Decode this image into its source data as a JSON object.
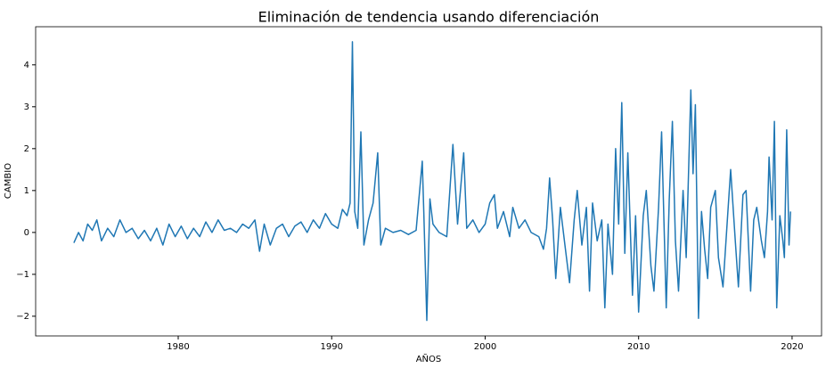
{
  "chart_data": {
    "type": "line",
    "title": "Eliminación de tendencia usando diferenciación",
    "xlabel": "AÑOS",
    "ylabel": "CAMBIO",
    "x": [
      1973.2,
      1973.5,
      1973.8,
      1974.1,
      1974.4,
      1974.7,
      1975.0,
      1975.4,
      1975.8,
      1976.2,
      1976.6,
      1977.0,
      1977.4,
      1977.8,
      1978.2,
      1978.6,
      1979.0,
      1979.4,
      1979.8,
      1980.2,
      1980.6,
      1981.0,
      1981.4,
      1981.8,
      1982.2,
      1982.6,
      1983.0,
      1983.4,
      1983.8,
      1984.2,
      1984.6,
      1985.0,
      1985.3,
      1985.6,
      1986.0,
      1986.4,
      1986.8,
      1987.2,
      1987.6,
      1988.0,
      1988.4,
      1988.8,
      1989.2,
      1989.6,
      1990.0,
      1990.4,
      1990.7,
      1991.0,
      1991.2,
      1991.35,
      1991.5,
      1991.7,
      1991.9,
      1992.1,
      1992.4,
      1992.7,
      1993.0,
      1993.2,
      1993.5,
      1994.0,
      1994.5,
      1995.0,
      1995.5,
      1995.9,
      1996.0,
      1996.2,
      1996.4,
      1996.6,
      1997.0,
      1997.5,
      1997.9,
      1998.2,
      1998.6,
      1998.8,
      1999.2,
      1999.6,
      2000.0,
      2000.3,
      2000.6,
      2000.8,
      2001.2,
      2001.6,
      2001.8,
      2002.2,
      2002.6,
      2003.0,
      2003.5,
      2003.8,
      2004.0,
      2004.2,
      2004.4,
      2004.6,
      2004.9,
      2005.2,
      2005.5,
      2005.8,
      2006.0,
      2006.3,
      2006.6,
      2006.8,
      2007.0,
      2007.3,
      2007.6,
      2007.8,
      2008.0,
      2008.3,
      2008.5,
      2008.7,
      2008.9,
      2009.1,
      2009.3,
      2009.6,
      2009.8,
      2010.0,
      2010.3,
      2010.5,
      2010.8,
      2011.0,
      2011.3,
      2011.5,
      2011.8,
      2012.0,
      2012.2,
      2012.4,
      2012.6,
      2012.9,
      2013.1,
      2013.4,
      2013.55,
      2013.7,
      2013.9,
      2014.1,
      2014.3,
      2014.5,
      2014.7,
      2015.0,
      2015.2,
      2015.5,
      2015.8,
      2016.0,
      2016.3,
      2016.5,
      2016.8,
      2017.0,
      2017.3,
      2017.5,
      2017.7,
      2018.0,
      2018.2,
      2018.4,
      2018.5,
      2018.7,
      2018.85,
      2019.0,
      2019.2,
      2019.4,
      2019.5,
      2019.65,
      2019.8,
      2019.9
    ],
    "series": [
      {
        "name": "CAMBIO",
        "color": "#1f77b4",
        "values": [
          -0.25,
          0.0,
          -0.2,
          0.2,
          0.05,
          0.3,
          -0.2,
          0.1,
          -0.1,
          0.3,
          0.0,
          0.1,
          -0.15,
          0.05,
          -0.2,
          0.1,
          -0.3,
          0.2,
          -0.1,
          0.15,
          -0.15,
          0.1,
          -0.1,
          0.25,
          0.0,
          0.3,
          0.05,
          0.1,
          0.0,
          0.2,
          0.1,
          0.3,
          -0.45,
          0.2,
          -0.3,
          0.1,
          0.2,
          -0.1,
          0.15,
          0.25,
          0.0,
          0.3,
          0.1,
          0.45,
          0.2,
          0.1,
          0.55,
          0.4,
          0.7,
          4.55,
          0.5,
          0.1,
          2.4,
          -0.3,
          0.3,
          0.7,
          1.9,
          -0.3,
          0.1,
          0.0,
          0.05,
          -0.05,
          0.05,
          1.7,
          0.5,
          -2.1,
          0.8,
          0.2,
          0.0,
          -0.1,
          2.1,
          0.2,
          1.9,
          0.1,
          0.3,
          0.0,
          0.2,
          0.7,
          0.9,
          0.1,
          0.5,
          -0.1,
          0.6,
          0.1,
          0.3,
          0.0,
          -0.1,
          -0.4,
          0.1,
          1.3,
          0.3,
          -1.1,
          0.6,
          -0.3,
          -1.2,
          0.3,
          1.0,
          -0.3,
          0.6,
          -1.4,
          0.7,
          -0.2,
          0.3,
          -1.8,
          0.2,
          -1.0,
          2.0,
          0.2,
          3.1,
          -0.5,
          1.9,
          -1.5,
          0.4,
          -1.9,
          0.4,
          1.0,
          -0.8,
          -1.4,
          0.6,
          2.4,
          -1.8,
          0.8,
          2.65,
          -0.2,
          -1.4,
          1.0,
          -0.6,
          3.4,
          1.4,
          3.05,
          -2.05,
          0.5,
          -0.4,
          -1.1,
          0.6,
          1.0,
          -0.6,
          -1.3,
          0.4,
          1.5,
          -0.2,
          -1.3,
          0.9,
          1.0,
          -1.4,
          0.3,
          0.6,
          -0.2,
          -0.6,
          0.5,
          1.8,
          0.3,
          2.65,
          -1.8,
          0.4,
          -0.2,
          -0.6,
          2.45,
          -0.3,
          0.5
        ]
      }
    ],
    "xlim": [
      1970.71,
      2021.92
    ],
    "xticks": [
      1980,
      1990,
      2000,
      2010,
      2020
    ],
    "ylim": [
      -2.47,
      4.91
    ],
    "yticks": [
      {
        "value": -2,
        "label": "−2"
      },
      {
        "value": -1,
        "label": "−1"
      },
      0,
      1,
      2,
      3,
      4
    ]
  }
}
